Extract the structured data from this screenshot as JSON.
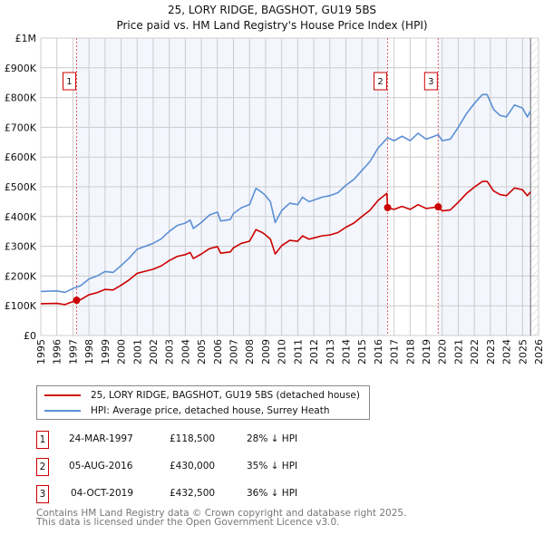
{
  "chart_data": {
    "type": "line",
    "title": "25, LORY RIDGE, BAGSHOT, GU19 5BS",
    "subtitle": "Price paid vs. HM Land Registry's House Price Index (HPI)",
    "xlim": [
      1995,
      2026
    ],
    "ylim": [
      0,
      1000000
    ],
    "x_ticks": [
      "1995",
      "1996",
      "1997",
      "1998",
      "1999",
      "2000",
      "2001",
      "2002",
      "2003",
      "2004",
      "2005",
      "2006",
      "2007",
      "2008",
      "2009",
      "2010",
      "2011",
      "2012",
      "2013",
      "2014",
      "2015",
      "2016",
      "2017",
      "2018",
      "2019",
      "2020",
      "2021",
      "2022",
      "2023",
      "2024",
      "2025",
      "2026"
    ],
    "y_ticks": [
      {
        "v": 0,
        "label": "£0"
      },
      {
        "v": 100000,
        "label": "£100K"
      },
      {
        "v": 200000,
        "label": "£200K"
      },
      {
        "v": 300000,
        "label": "£300K"
      },
      {
        "v": 400000,
        "label": "£400K"
      },
      {
        "v": 500000,
        "label": "£500K"
      },
      {
        "v": 600000,
        "label": "£600K"
      },
      {
        "v": 700000,
        "label": "£700K"
      },
      {
        "v": 800000,
        "label": "£800K"
      },
      {
        "v": 900000,
        "label": "£900K"
      },
      {
        "v": 1000000,
        "label": "£1M"
      }
    ],
    "grid": true,
    "shaded_ranges": [
      [
        1997.23,
        2016.6
      ],
      [
        2019.75,
        2025.5
      ]
    ],
    "data_end": 2025.5,
    "series": [
      {
        "name": "25, LORY RIDGE, BAGSHOT, GU19 5BS (detached house)",
        "color": "#cc0000",
        "x": [
          1995,
          1996,
          1996.5,
          1997,
          1997.23,
          1997.5,
          1998,
          1998.5,
          1999,
          1999.5,
          2000,
          2000.5,
          2001,
          2001.5,
          2002,
          2002.5,
          2003,
          2003.5,
          2004,
          2004.3,
          2004.5,
          2005,
          2005.5,
          2006,
          2006.2,
          2006.8,
          2007,
          2007.5,
          2008,
          2008.4,
          2008.8,
          2009,
          2009.3,
          2009.6,
          2010,
          2010.5,
          2011,
          2011.3,
          2011.7,
          2012,
          2012.5,
          2013,
          2013.5,
          2014,
          2014.5,
          2015,
          2015.5,
          2016,
          2016.55,
          2016.6,
          2017,
          2017.5,
          2018,
          2018.5,
          2019,
          2019.75,
          2020,
          2020.5,
          2021,
          2021.5,
          2022,
          2022.5,
          2022.8,
          2023.2,
          2023.6,
          2024,
          2024.5,
          2025,
          2025.3,
          2025.5
        ],
        "y": [
          107,
          108,
          104,
          114,
          118.5,
          121,
          137,
          144,
          155,
          153,
          169,
          187,
          209,
          216,
          223,
          234,
          252,
          266,
          272,
          279,
          259,
          274,
          292,
          299,
          277,
          281,
          295,
          310,
          317,
          356,
          346,
          338,
          324,
          274,
          302,
          320,
          317,
          335,
          324,
          328,
          335,
          338,
          346,
          364,
          378,
          400,
          421,
          454,
          478,
          430,
          424,
          434,
          424,
          440,
          427,
          432.5,
          419,
          422,
          448,
          477,
          499,
          518,
          518,
          486,
          474,
          470,
          496,
          490,
          470,
          483
        ],
        "y_unit": "thousand GBP"
      },
      {
        "name": "HPI: Average price, detached house, Surrey Heath",
        "color": "#5b8fd4",
        "x": [
          1995,
          1996,
          1996.5,
          1997,
          1997.5,
          1998,
          1998.5,
          1999,
          1999.5,
          2000,
          2000.5,
          2001,
          2001.5,
          2002,
          2002.5,
          2003,
          2003.5,
          2004,
          2004.3,
          2004.5,
          2005,
          2005.5,
          2006,
          2006.2,
          2006.8,
          2007,
          2007.5,
          2008,
          2008.4,
          2008.8,
          2009,
          2009.3,
          2009.6,
          2010,
          2010.5,
          2011,
          2011.3,
          2011.7,
          2012,
          2012.5,
          2013,
          2013.5,
          2014,
          2014.5,
          2015,
          2015.5,
          2016,
          2016.6,
          2017,
          2017.5,
          2018,
          2018.5,
          2019,
          2019.75,
          2020,
          2020.5,
          2021,
          2021.5,
          2022,
          2022.5,
          2022.8,
          2023.2,
          2023.6,
          2024,
          2024.5,
          2025,
          2025.3,
          2025.5
        ],
        "y": [
          148,
          150,
          145,
          158,
          168,
          190,
          200,
          215,
          212,
          235,
          260,
          290,
          300,
          310,
          325,
          350,
          370,
          378,
          388,
          360,
          380,
          405,
          415,
          385,
          390,
          410,
          430,
          440,
          495,
          480,
          470,
          450,
          380,
          420,
          445,
          440,
          465,
          450,
          455,
          465,
          470,
          480,
          505,
          525,
          555,
          585,
          630,
          665,
          655,
          670,
          655,
          680,
          660,
          675,
          655,
          660,
          700,
          745,
          780,
          810,
          810,
          760,
          740,
          735,
          775,
          765,
          735,
          755
        ],
        "y_unit": "thousand GBP"
      }
    ],
    "sales": [
      {
        "id": "1",
        "x": 1997.23,
        "price": 118500,
        "date": "24-MAR-1997",
        "price_label": "£118,500",
        "hpi_label": "28% ↓ HPI"
      },
      {
        "id": "2",
        "x": 2016.6,
        "price": 430000,
        "date": "05-AUG-2016",
        "price_label": "£430,000",
        "hpi_label": "35% ↓ HPI"
      },
      {
        "id": "3",
        "x": 2019.75,
        "price": 432500,
        "date": "04-OCT-2019",
        "price_label": "£432,500",
        "hpi_label": "36% ↓ HPI"
      }
    ],
    "legend_placement": "below"
  },
  "footer": {
    "line1": "Contains HM Land Registry data © Crown copyright and database right 2025.",
    "line2": "This data is licensed under the Open Government Licence v3.0."
  }
}
